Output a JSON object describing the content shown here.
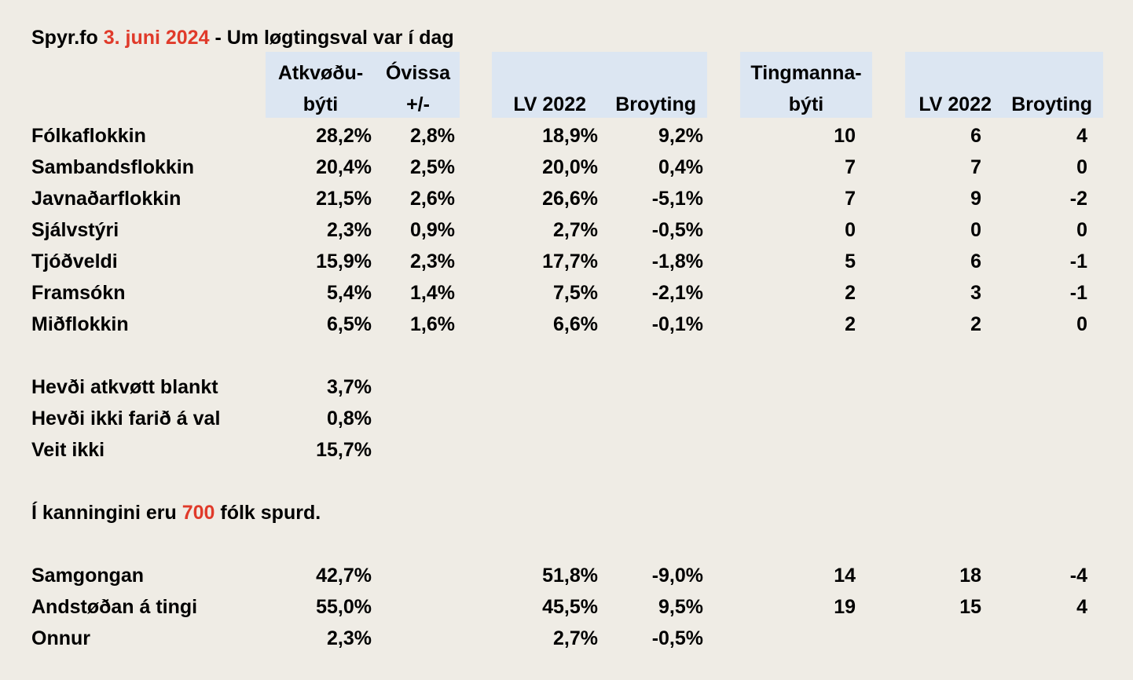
{
  "title": {
    "prefix": "Spyr.fo",
    "date": "3. juni 2024",
    "suffix": "- Um løgtingsval var í dag"
  },
  "headers": {
    "atkvodubyti_1": "Atkvøðu-",
    "atkvodubyti_2": "býti",
    "ovissa_1": "Óvissa",
    "ovissa_2": "+/-",
    "lv2022_a": "LV 2022",
    "broyting_a": "Broyting",
    "tingmannabyti_1": "Tingmanna-",
    "tingmannabyti_2": "býti",
    "lv2022_b": "LV 2022",
    "broyting_b": "Broyting"
  },
  "parties": [
    {
      "name": "Fólkaflokkin",
      "share": "28,2%",
      "uncertainty": "2,8%",
      "lv2022": "18,9%",
      "change": "9,2%",
      "seats": "10",
      "seats_2022": "6",
      "seats_change": "4"
    },
    {
      "name": "Sambandsflokkin",
      "share": "20,4%",
      "uncertainty": "2,5%",
      "lv2022": "20,0%",
      "change": "0,4%",
      "seats": "7",
      "seats_2022": "7",
      "seats_change": "0"
    },
    {
      "name": "Javnaðarflokkin",
      "share": "21,5%",
      "uncertainty": "2,6%",
      "lv2022": "26,6%",
      "change": "-5,1%",
      "seats": "7",
      "seats_2022": "9",
      "seats_change": "-2"
    },
    {
      "name": "Sjálvstýri",
      "share": "2,3%",
      "uncertainty": "0,9%",
      "lv2022": "2,7%",
      "change": "-0,5%",
      "seats": "0",
      "seats_2022": "0",
      "seats_change": "0"
    },
    {
      "name": "Tjóðveldi",
      "share": "15,9%",
      "uncertainty": "2,3%",
      "lv2022": "17,7%",
      "change": "-1,8%",
      "seats": "5",
      "seats_2022": "6",
      "seats_change": "-1"
    },
    {
      "name": "Framsókn",
      "share": "5,4%",
      "uncertainty": "1,4%",
      "lv2022": "7,5%",
      "change": "-2,1%",
      "seats": "2",
      "seats_2022": "3",
      "seats_change": "-1"
    },
    {
      "name": "Miðflokkin",
      "share": "6,5%",
      "uncertainty": "1,6%",
      "lv2022": "6,6%",
      "change": "-0,1%",
      "seats": "2",
      "seats_2022": "2",
      "seats_change": "0"
    }
  ],
  "other": [
    {
      "label": "Hevði atkvøtt blankt",
      "value": "3,7%"
    },
    {
      "label": "Hevði ikki farið á val",
      "value": "0,8%"
    },
    {
      "label": "Veit ikki",
      "value": "15,7%"
    }
  ],
  "sample": {
    "prefix": "Í kanningini eru",
    "count": "700",
    "suffix": "fólk spurd."
  },
  "blocs": [
    {
      "name": "Samgongan",
      "share": "42,7%",
      "lv2022": "51,8%",
      "change": "-9,0%",
      "seats": "14",
      "seats_2022": "18",
      "seats_change": "-4"
    },
    {
      "name": "Andstøðan á tingi",
      "share": "55,0%",
      "lv2022": "45,5%",
      "change": "9,5%",
      "seats": "19",
      "seats_2022": "15",
      "seats_change": "4"
    },
    {
      "name": "Onnur",
      "share": "2,3%",
      "lv2022": "2,7%",
      "change": "-0,5%",
      "seats": "",
      "seats_2022": "",
      "seats_change": ""
    }
  ],
  "colors": {
    "background": "#efece5",
    "header_fill": "#dce6f2",
    "accent_red": "#e03a2a"
  }
}
